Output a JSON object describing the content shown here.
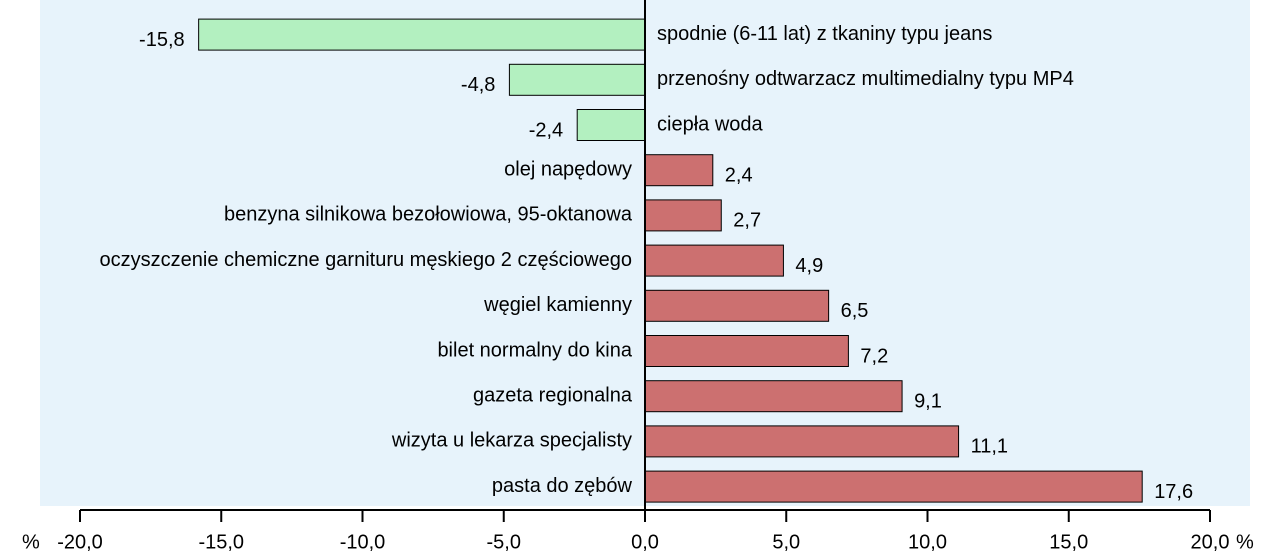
{
  "chart_data": {
    "type": "barh",
    "categories": [
      "spodnie (6-11 lat) z tkaniny typu jeans",
      "przenośny odtwarzacz multimedialny typu MP4",
      "ciepła woda",
      "olej napędowy",
      "benzyna silnikowa bezołowiowa, 95-oktanowa",
      "oczyszczenie chemiczne garnituru męskiego 2 częściowego",
      "węgiel kamienny",
      "bilet normalny do kina",
      "gazeta regionalna",
      "wizyta u lekarza specjalisty",
      "pasta do zębów"
    ],
    "values": [
      -15.8,
      -4.8,
      -2.4,
      2.4,
      2.7,
      4.9,
      6.5,
      7.2,
      9.1,
      11.1,
      17.6
    ],
    "value_labels": [
      "-15,8",
      "-4,8",
      "-2,4",
      "2,4",
      "2,7",
      "4,9",
      "6,5",
      "7,2",
      "9,1",
      "11,1",
      "17,6"
    ],
    "color_negative": "#b3f0c0",
    "color_positive": "#cc7070",
    "xlim": [
      -20,
      20
    ],
    "xticks": [
      {
        "value": -20,
        "label": "-20,0"
      },
      {
        "value": -15,
        "label": "-15,0"
      },
      {
        "value": -10,
        "label": "-10,0"
      },
      {
        "value": -5,
        "label": "-5,0"
      },
      {
        "value": 0,
        "label": "0,0"
      },
      {
        "value": 5,
        "label": "5,0"
      },
      {
        "value": 10,
        "label": "10,0"
      },
      {
        "value": 15,
        "label": "15,0"
      },
      {
        "value": 20,
        "label": "20,0"
      }
    ],
    "x_unit": "%"
  }
}
